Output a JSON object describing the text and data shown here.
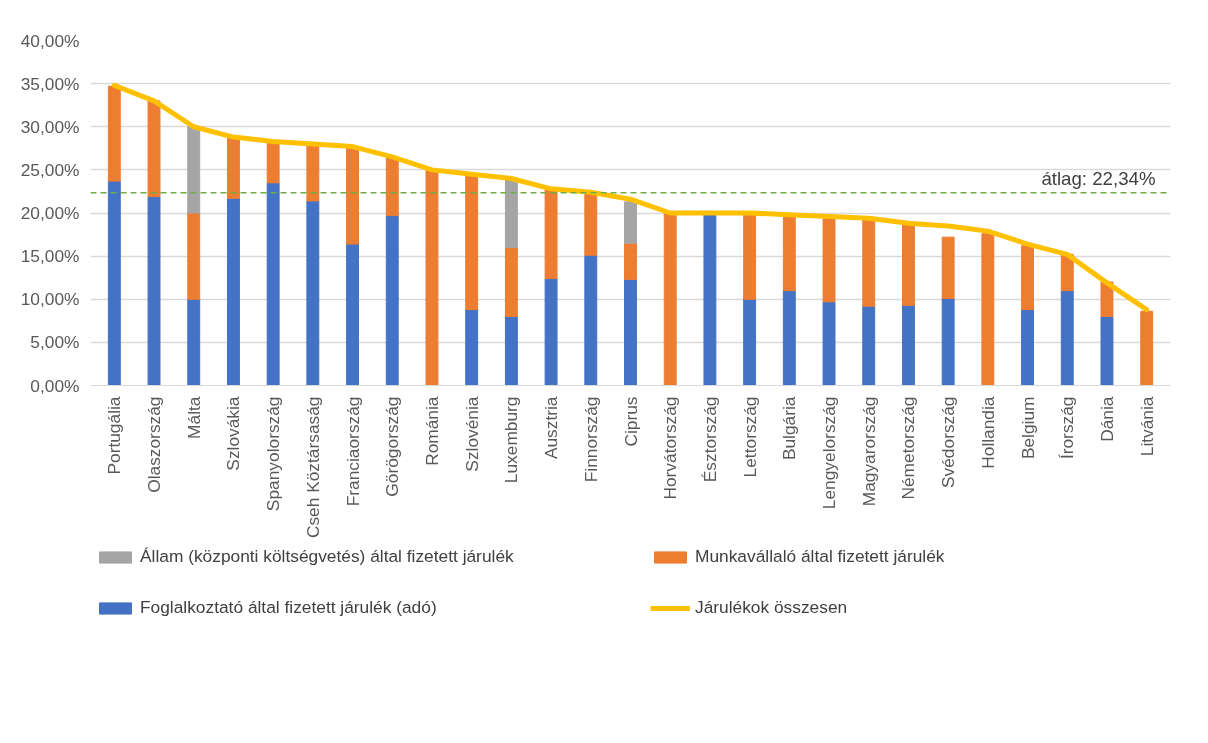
{
  "chart_data": {
    "type": "bar",
    "stacked": true,
    "categories": [
      "Portugália",
      "Olaszország",
      "Málta",
      "Szlovákia",
      "Spanyolország",
      "Cseh Köztársaság",
      "Franciaország",
      "Görögország",
      "Románia",
      "Szlovénia",
      "Luxemburg",
      "Ausztria",
      "Finnország",
      "Ciprus",
      "Horvátország",
      "Észtország",
      "Lettország",
      "Bulgária",
      "Lengyelország",
      "Magyarország",
      "Németország",
      "Svédország",
      "Hollandia",
      "Belgium",
      "Írország",
      "Dánia",
      "Litvánia"
    ],
    "series": [
      {
        "name": "Foglalkoztató által fizetett járulék (adó)",
        "color": "#4472c4",
        "values": [
          23.7,
          21.9,
          10.0,
          21.7,
          23.5,
          21.4,
          16.4,
          19.7,
          null,
          8.8,
          8.0,
          12.4,
          15.1,
          12.3,
          null,
          19.8,
          10.0,
          11.0,
          9.7,
          9.2,
          9.3,
          10.1,
          null,
          8.8,
          11.0,
          8.0,
          null
        ]
      },
      {
        "name": "Munkavállaló által fizetett járulék",
        "color": "#ed7d31",
        "values": [
          11.0,
          11.1,
          10.0,
          7.1,
          4.8,
          6.6,
          11.3,
          6.8,
          25.0,
          15.7,
          8.0,
          10.4,
          7.3,
          4.2,
          20.0,
          null,
          10.0,
          8.8,
          9.9,
          10.2,
          9.5,
          7.1,
          17.6,
          7.4,
          4.2,
          4.0,
          8.6
        ]
      },
      {
        "name": "Állam (központi költségvetés) által fizetett járulék",
        "color": "#a5a5a5",
        "values": [
          null,
          null,
          10.0,
          null,
          null,
          null,
          null,
          null,
          null,
          null,
          8.0,
          null,
          null,
          4.8,
          null,
          null,
          null,
          null,
          null,
          null,
          null,
          null,
          null,
          null,
          null,
          null,
          null
        ]
      },
      {
        "name": "Járulékok összesen",
        "type": "line",
        "color": "#ffc000",
        "values": [
          34.8,
          33.0,
          30.0,
          28.8,
          28.3,
          28.0,
          27.7,
          26.5,
          25.0,
          24.5,
          24.0,
          22.8,
          22.4,
          21.6,
          20.0,
          20.0,
          20.0,
          19.8,
          19.6,
          19.4,
          18.8,
          18.5,
          17.9,
          16.4,
          15.2,
          11.9,
          8.8
        ]
      }
    ],
    "ylim": [
      0,
      40
    ],
    "yticks": [
      {
        "value": 0,
        "label": "0,00%"
      },
      {
        "value": 5,
        "label": "5,00%"
      },
      {
        "value": 10,
        "label": "10,00%"
      },
      {
        "value": 15,
        "label": "15,00%"
      },
      {
        "value": 20,
        "label": "20,00%"
      },
      {
        "value": 25,
        "label": "25,00%"
      },
      {
        "value": 30,
        "label": "30,00%"
      },
      {
        "value": 35,
        "label": "35,00%"
      },
      {
        "value": 40,
        "label": "40,00%"
      }
    ],
    "ref_lines": [
      {
        "axis": "y",
        "value": 22.34,
        "label": "átlag: 22,34%",
        "color": "#70ad47",
        "line_style": "dashed"
      }
    ],
    "grid": "y",
    "legend": "bottom"
  }
}
